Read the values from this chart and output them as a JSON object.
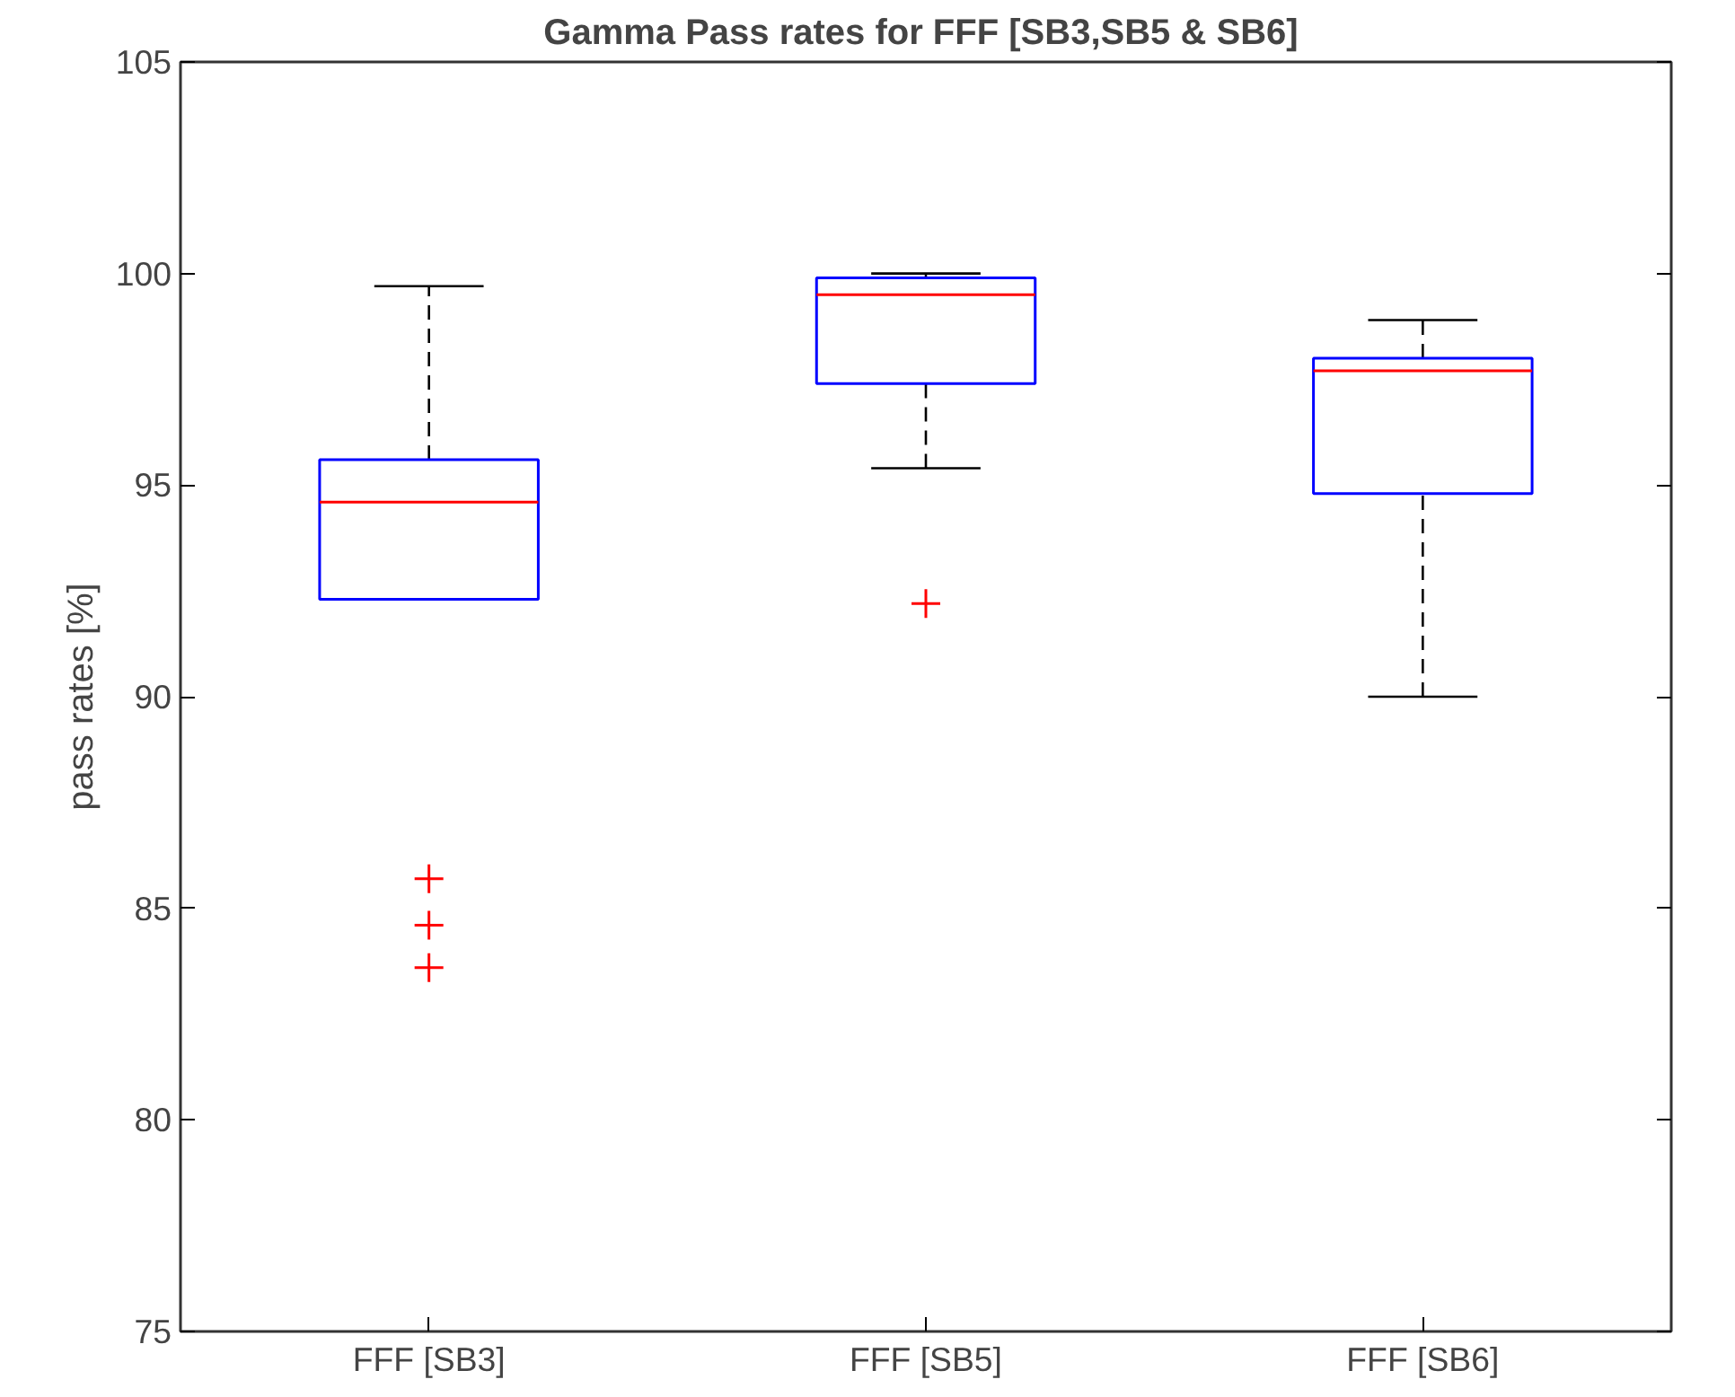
{
  "chart_data": {
    "type": "box",
    "title": "Gamma Pass rates for FFF  [SB3,SB5 & SB6]",
    "ylabel": "pass rates [%]",
    "categories": [
      "FFF [SB3]",
      "FFF [SB5]",
      "FFF [SB6]"
    ],
    "color": "#0000ff",
    "boxes": [
      {
        "low": 92.3,
        "q1": 92.3,
        "median": 94.6,
        "q3": 95.6,
        "high": 99.7,
        "outliers": [
          85.7,
          84.6,
          83.6
        ]
      },
      {
        "low": 95.4,
        "q1": 97.4,
        "median": 99.5,
        "q3": 99.9,
        "high": 100.0,
        "outliers": [
          92.2
        ]
      },
      {
        "low": 90.0,
        "q1": 94.8,
        "median": 97.7,
        "q3": 98.0,
        "high": 98.9
      }
    ],
    "ylim": [
      75,
      105
    ],
    "yticks": [
      75,
      80,
      85,
      90,
      95,
      100,
      105
    ],
    "grid": false,
    "marker": "cross"
  }
}
